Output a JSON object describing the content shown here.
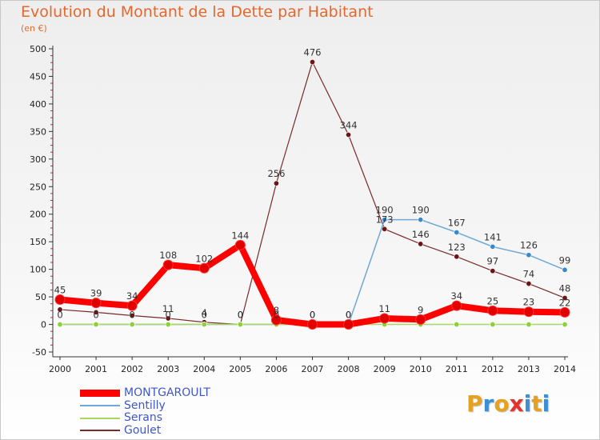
{
  "title": "Evolution du Montant de la Dette par Habitant",
  "subtitle": "(en €)",
  "logo": {
    "text": "Proxiti",
    "letters": [
      {
        "char": "P",
        "color": "#e6a11f"
      },
      {
        "char": "r",
        "color": "#3a8fd9"
      },
      {
        "char": "o",
        "color": "#e6a11f"
      },
      {
        "char": "x",
        "color": "#e0342c"
      },
      {
        "char": "i",
        "color": "#3a8fd9"
      },
      {
        "char": "t",
        "color": "#e6a11f"
      },
      {
        "char": "i",
        "color": "#3a8fd9"
      }
    ]
  },
  "chart_data": {
    "type": "line",
    "title": "Evolution du Montant de la Dette par Habitant",
    "ylabel": "(en €)",
    "x": [
      "2000",
      "2001",
      "2002",
      "2003",
      "2004",
      "2005",
      "2006",
      "2007",
      "2008",
      "2009",
      "2010",
      "2011",
      "2012",
      "2013",
      "2014"
    ],
    "ylim": [
      -50,
      500
    ],
    "yticks": [
      -50,
      0,
      50,
      100,
      150,
      200,
      250,
      300,
      350,
      400,
      450,
      500
    ],
    "grid": false,
    "legend_position": "bottom-left",
    "series": [
      {
        "name": "MONTGAROULT",
        "color": "#ff0000",
        "marker": "#e00000",
        "width": 8,
        "values": [
          45,
          39,
          34,
          108,
          102,
          144,
          8,
          0,
          0,
          11,
          9,
          34,
          25,
          23,
          22
        ],
        "labels": [
          "45",
          "39",
          "34",
          "108",
          "102",
          "144",
          "8",
          "0",
          "0",
          "11",
          "9",
          "34",
          "25",
          "23",
          "22"
        ]
      },
      {
        "name": "Sentilly",
        "color": "#6ea8d8",
        "marker": "#3a88cc",
        "width": 1.5,
        "values": [
          0,
          0,
          0,
          0,
          0,
          0,
          0,
          0,
          0,
          190,
          190,
          167,
          141,
          126,
          99
        ],
        "labels": [
          "0",
          "0",
          "0",
          "0",
          "0",
          "0",
          "0",
          "0",
          "0",
          "190",
          "190",
          "167",
          "141",
          "126",
          "99"
        ]
      },
      {
        "name": "Serans",
        "color": "#a8d860",
        "marker": "#8ed03a",
        "width": 1.5,
        "values": [
          0,
          0,
          0,
          0,
          0,
          0,
          0,
          0,
          0,
          0,
          0,
          0,
          0,
          0,
          0
        ],
        "labels": []
      },
      {
        "name": "Goulet",
        "color": "#7a2a2a",
        "marker": "#6a1616",
        "width": 1.2,
        "values": [
          27,
          22,
          16,
          11,
          4,
          0,
          256,
          476,
          344,
          173,
          146,
          123,
          97,
          74,
          48
        ],
        "labels": [
          "",
          "",
          "",
          "11",
          "4",
          "0",
          "256",
          "476",
          "344",
          "173",
          "146",
          "123",
          "97",
          "74",
          "48"
        ]
      }
    ]
  }
}
